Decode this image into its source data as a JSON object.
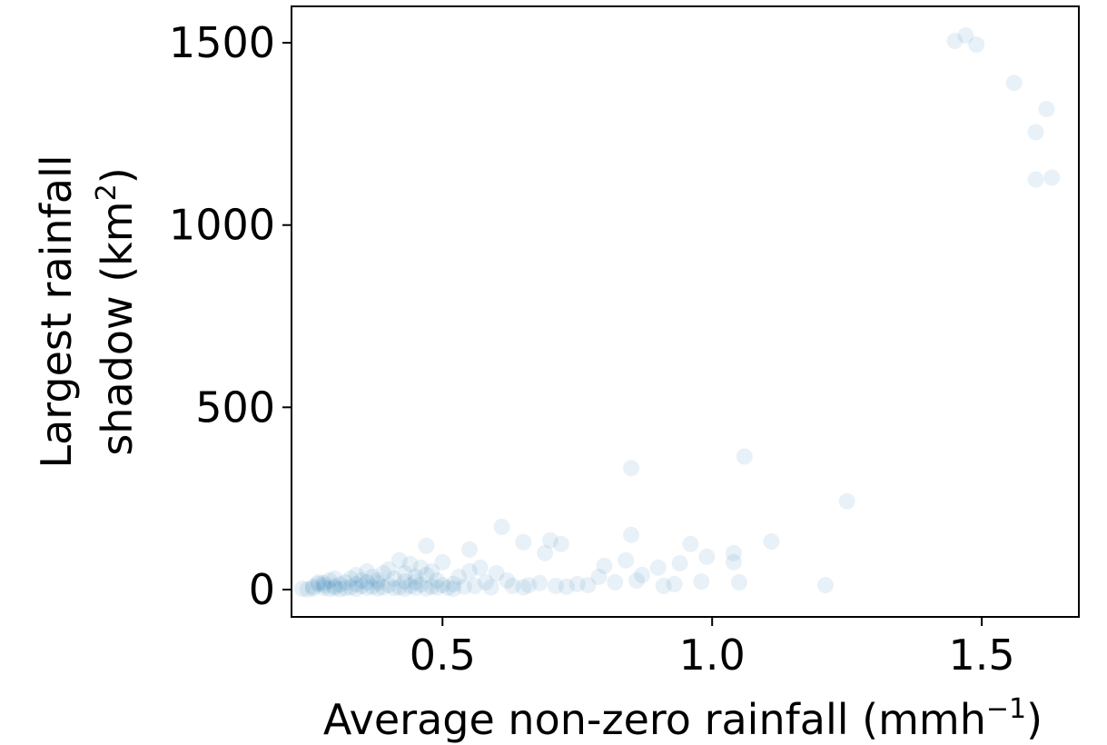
{
  "chart_data": {
    "type": "scatter",
    "title": "",
    "xlabel": {
      "base": "Average non-zero rainfall (mmh",
      "sup": "−1",
      "tail": ")"
    },
    "ylabel": {
      "line1": "Largest rainfall",
      "line2_base": "shadow (km",
      "line2_sup": "2",
      "line2_tail": ")"
    },
    "xlim": [
      0.22,
      1.68
    ],
    "ylim": [
      -75,
      1600
    ],
    "xticks": [
      0.5,
      1.0,
      1.5
    ],
    "xtick_labels": [
      "0.5",
      "1.0",
      "1.5"
    ],
    "yticks": [
      0,
      500,
      1000,
      1500
    ],
    "ytick_labels": [
      "0",
      "500",
      "1000",
      "1500"
    ],
    "grid": false,
    "legend": "none",
    "marker_color": "#1f77b4",
    "marker_alpha": 0.1,
    "points": [
      {
        "x": 1.45,
        "y": 1505
      },
      {
        "x": 1.47,
        "y": 1520
      },
      {
        "x": 1.49,
        "y": 1495
      },
      {
        "x": 1.56,
        "y": 1390
      },
      {
        "x": 1.62,
        "y": 1318
      },
      {
        "x": 1.6,
        "y": 1255
      },
      {
        "x": 1.6,
        "y": 1125
      },
      {
        "x": 1.63,
        "y": 1130
      },
      {
        "x": 1.06,
        "y": 365
      },
      {
        "x": 0.85,
        "y": 333
      },
      {
        "x": 1.25,
        "y": 242
      },
      {
        "x": 0.61,
        "y": 172
      },
      {
        "x": 0.85,
        "y": 150
      },
      {
        "x": 0.7,
        "y": 135
      },
      {
        "x": 0.72,
        "y": 125
      },
      {
        "x": 0.65,
        "y": 130
      },
      {
        "x": 1.11,
        "y": 132
      },
      {
        "x": 0.96,
        "y": 125
      },
      {
        "x": 0.55,
        "y": 110
      },
      {
        "x": 0.69,
        "y": 100
      },
      {
        "x": 1.04,
        "y": 100
      },
      {
        "x": 0.99,
        "y": 90
      },
      {
        "x": 1.04,
        "y": 75
      },
      {
        "x": 0.94,
        "y": 72
      },
      {
        "x": 0.9,
        "y": 60
      },
      {
        "x": 0.84,
        "y": 80
      },
      {
        "x": 0.5,
        "y": 75
      },
      {
        "x": 0.47,
        "y": 120
      },
      {
        "x": 0.8,
        "y": 65
      },
      {
        "x": 0.87,
        "y": 40
      },
      {
        "x": 0.79,
        "y": 35
      },
      {
        "x": 1.05,
        "y": 20
      },
      {
        "x": 0.98,
        "y": 22
      },
      {
        "x": 0.93,
        "y": 15
      },
      {
        "x": 0.91,
        "y": 10
      },
      {
        "x": 1.21,
        "y": 12
      },
      {
        "x": 0.75,
        "y": 15
      },
      {
        "x": 0.73,
        "y": 8
      },
      {
        "x": 0.66,
        "y": 12
      },
      {
        "x": 0.62,
        "y": 25
      },
      {
        "x": 0.6,
        "y": 45
      },
      {
        "x": 0.57,
        "y": 60
      },
      {
        "x": 0.58,
        "y": 20
      },
      {
        "x": 0.53,
        "y": 35
      },
      {
        "x": 0.55,
        "y": 50
      },
      {
        "x": 0.52,
        "y": 15
      },
      {
        "x": 0.49,
        "y": 25
      },
      {
        "x": 0.47,
        "y": 40
      },
      {
        "x": 0.46,
        "y": 60
      },
      {
        "x": 0.44,
        "y": 70
      },
      {
        "x": 0.42,
        "y": 80
      },
      {
        "x": 0.45,
        "y": 20
      },
      {
        "x": 0.41,
        "y": 30
      },
      {
        "x": 0.39,
        "y": 45
      },
      {
        "x": 0.37,
        "y": 35
      },
      {
        "x": 0.35,
        "y": 25
      },
      {
        "x": 0.36,
        "y": 50
      },
      {
        "x": 0.34,
        "y": 15
      },
      {
        "x": 0.33,
        "y": 30
      },
      {
        "x": 0.32,
        "y": 20
      },
      {
        "x": 0.3,
        "y": 10
      },
      {
        "x": 0.29,
        "y": 25
      },
      {
        "x": 0.28,
        "y": 5
      },
      {
        "x": 0.27,
        "y": 15
      },
      {
        "x": 0.26,
        "y": 3
      },
      {
        "x": 0.25,
        "y": 0
      },
      {
        "x": 0.24,
        "y": 2
      },
      {
        "x": 0.26,
        "y": 8
      },
      {
        "x": 0.28,
        "y": 12
      },
      {
        "x": 0.3,
        "y": 4
      },
      {
        "x": 0.31,
        "y": 14
      },
      {
        "x": 0.33,
        "y": 6
      },
      {
        "x": 0.35,
        "y": 10
      },
      {
        "x": 0.37,
        "y": 8
      },
      {
        "x": 0.38,
        "y": 18
      },
      {
        "x": 0.4,
        "y": 12
      },
      {
        "x": 0.42,
        "y": 6
      },
      {
        "x": 0.43,
        "y": 22
      },
      {
        "x": 0.44,
        "y": 10
      },
      {
        "x": 0.46,
        "y": 14
      },
      {
        "x": 0.48,
        "y": 8
      },
      {
        "x": 0.5,
        "y": 12
      },
      {
        "x": 0.51,
        "y": 5
      },
      {
        "x": 0.54,
        "y": 8
      },
      {
        "x": 0.56,
        "y": 10
      },
      {
        "x": 0.59,
        "y": 6
      },
      {
        "x": 0.63,
        "y": 10
      },
      {
        "x": 0.65,
        "y": 6
      },
      {
        "x": 0.68,
        "y": 18
      },
      {
        "x": 0.71,
        "y": 10
      },
      {
        "x": 0.77,
        "y": 12
      },
      {
        "x": 0.82,
        "y": 20
      },
      {
        "x": 0.86,
        "y": 25
      },
      {
        "x": 0.27,
        "y": 20
      },
      {
        "x": 0.29,
        "y": 2
      },
      {
        "x": 0.31,
        "y": 1
      },
      {
        "x": 0.32,
        "y": 4
      },
      {
        "x": 0.34,
        "y": 2
      },
      {
        "x": 0.36,
        "y": 5
      },
      {
        "x": 0.38,
        "y": 3
      },
      {
        "x": 0.39,
        "y": 6
      },
      {
        "x": 0.41,
        "y": 4
      },
      {
        "x": 0.43,
        "y": 2
      },
      {
        "x": 0.45,
        "y": 5
      },
      {
        "x": 0.47,
        "y": 3
      },
      {
        "x": 0.49,
        "y": 6
      },
      {
        "x": 0.52,
        "y": 2
      },
      {
        "x": 0.3,
        "y": 30
      },
      {
        "x": 0.34,
        "y": 40
      },
      {
        "x": 0.4,
        "y": 55
      },
      {
        "x": 0.43,
        "y": 45
      },
      {
        "x": 0.45,
        "y": 35
      },
      {
        "x": 0.48,
        "y": 50
      },
      {
        "x": 0.38,
        "y": 25
      },
      {
        "x": 0.36,
        "y": 20
      },
      {
        "x": 0.28,
        "y": 18
      }
    ]
  }
}
